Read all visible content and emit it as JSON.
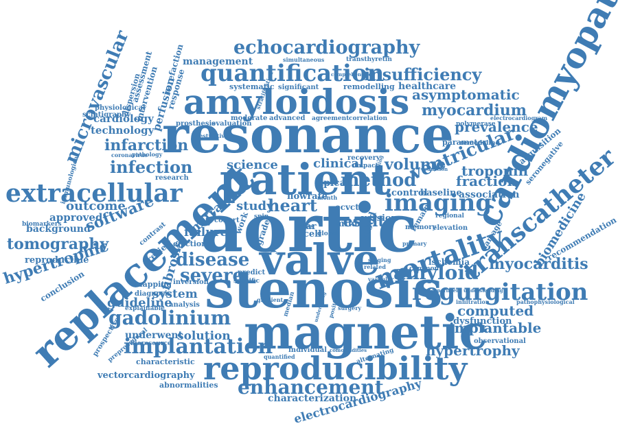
{
  "colors": {
    "text": "#3f7cb4",
    "background": "#ffffff"
  },
  "words": [
    {
      "text": "aortic",
      "weight": 1.0
    },
    {
      "text": "resonance",
      "weight": 0.86
    },
    {
      "text": "stenosis",
      "weight": 0.82
    },
    {
      "text": "magnetic",
      "weight": 0.74
    },
    {
      "text": "valve",
      "weight": 0.7
    },
    {
      "text": "patient",
      "weight": 0.7
    },
    {
      "text": "replacement",
      "weight": 0.66
    },
    {
      "text": "cardiomyopathy",
      "weight": 0.6
    },
    {
      "text": "amyloidosis",
      "weight": 0.56
    },
    {
      "text": "reproducibility",
      "weight": 0.52
    },
    {
      "text": "mortality",
      "weight": 0.46
    },
    {
      "text": "transcatheter",
      "weight": 0.44
    },
    {
      "text": "extracellular",
      "weight": 0.42
    },
    {
      "text": "quantification",
      "weight": 0.4
    },
    {
      "text": "regurgitation",
      "weight": 0.4
    },
    {
      "text": "imaging",
      "weight": 0.4
    },
    {
      "text": "gadolinium",
      "weight": 0.36
    },
    {
      "text": "implantation",
      "weight": 0.36
    },
    {
      "text": "echocardiography",
      "weight": 0.34
    },
    {
      "text": "enhancement",
      "weight": 0.34
    },
    {
      "text": "amyloid",
      "weight": 0.32
    },
    {
      "text": "insufficiency",
      "weight": 0.3
    },
    {
      "text": "disease",
      "weight": 0.3
    },
    {
      "text": "severe",
      "weight": 0.3
    },
    {
      "text": "ventricular",
      "weight": 0.3
    },
    {
      "text": "method",
      "weight": 0.3
    },
    {
      "text": "microvascular",
      "weight": 0.3
    },
    {
      "text": "infection",
      "weight": 0.28
    },
    {
      "text": "heart",
      "weight": 0.28
    },
    {
      "text": "myocarditis",
      "weight": 0.26
    },
    {
      "text": "tomography",
      "weight": 0.26
    },
    {
      "text": "hypertrophic",
      "weight": 0.26
    },
    {
      "text": "myocardium",
      "weight": 0.24
    },
    {
      "text": "software",
      "weight": 0.24
    },
    {
      "text": "result",
      "weight": 0.24
    },
    {
      "text": "volume",
      "weight": 0.22
    },
    {
      "text": "computed",
      "weight": 0.22
    },
    {
      "text": "implantable",
      "weight": 0.22
    },
    {
      "text": "hypertrophy",
      "weight": 0.22
    },
    {
      "text": "fraction",
      "weight": 0.22
    },
    {
      "text": "prevalence",
      "weight": 0.22
    },
    {
      "text": "troponin",
      "weight": 0.22
    },
    {
      "text": "asymptomatic",
      "weight": 0.22
    },
    {
      "text": "infarction",
      "weight": 0.22
    },
    {
      "text": "outcome",
      "weight": 0.22
    },
    {
      "text": "solution",
      "weight": 0.2
    },
    {
      "text": "guideline",
      "weight": 0.2
    },
    {
      "text": "failure",
      "weight": 0.2
    },
    {
      "text": "science",
      "weight": 0.2
    },
    {
      "text": "clinical",
      "weight": 0.2
    },
    {
      "text": "study",
      "weight": 0.2
    },
    {
      "text": "system",
      "weight": 0.2
    },
    {
      "text": "mitral",
      "weight": 0.2
    },
    {
      "text": "fibrosis",
      "weight": 0.2
    },
    {
      "text": "biomedicine",
      "weight": 0.2
    },
    {
      "text": "electrocardiography",
      "weight": 0.2
    },
    {
      "text": "management",
      "weight": 0.18
    },
    {
      "text": "cardiology",
      "weight": 0.18
    },
    {
      "text": "technology",
      "weight": 0.18
    },
    {
      "text": "healthcare",
      "weight": 0.18
    },
    {
      "text": "approved",
      "weight": 0.18
    },
    {
      "text": "background",
      "weight": 0.18
    },
    {
      "text": "association",
      "weight": 0.18
    },
    {
      "text": "underwent",
      "weight": 0.18
    },
    {
      "text": "dysfunction",
      "weight": 0.18
    },
    {
      "text": "characterization",
      "weight": 0.18
    },
    {
      "text": "version",
      "weight": 0.17
    },
    {
      "text": "perfusion",
      "weight": 0.17
    },
    {
      "text": "recommendation",
      "weight": 0.17
    },
    {
      "text": "vectorcardiography",
      "weight": 0.16
    },
    {
      "text": "reproducible",
      "weight": 0.16
    },
    {
      "text": "conclusion",
      "weight": 0.16
    },
    {
      "text": "baseline",
      "weight": 0.16
    },
    {
      "text": "control",
      "weight": 0.16
    },
    {
      "text": "acquisition",
      "weight": 0.16
    },
    {
      "text": "parameter",
      "weight": 0.16
    },
    {
      "text": "remodelling",
      "weight": 0.15
    },
    {
      "text": "systematic",
      "weight": 0.15
    },
    {
      "text": "significant",
      "weight": 0.15
    },
    {
      "text": "ischemia",
      "weight": 0.15
    },
    {
      "text": "characteristic",
      "weight": 0.15
    },
    {
      "text": "abnormalities",
      "weight": 0.15
    },
    {
      "text": "individual",
      "weight": 0.15
    },
    {
      "text": "seronegative",
      "weight": 0.15
    },
    {
      "text": "review",
      "weight": 0.15
    },
    {
      "text": "alternating",
      "weight": 0.14
    },
    {
      "text": "ejection",
      "weight": 0.14
    },
    {
      "text": "mapping",
      "weight": 0.14
    },
    {
      "text": "diagnosis",
      "weight": 0.14
    },
    {
      "text": "analysis",
      "weight": 0.14
    },
    {
      "text": "inversion",
      "weight": 0.14
    },
    {
      "text": "observational",
      "weight": 0.14
    },
    {
      "text": "moderate",
      "weight": 0.14
    },
    {
      "text": "advanced",
      "weight": 0.14
    },
    {
      "text": "agreement",
      "weight": 0.14
    },
    {
      "text": "correlation",
      "weight": 0.14
    },
    {
      "text": "polymerase",
      "weight": 0.14
    },
    {
      "text": "remodeling",
      "weight": 0.14
    },
    {
      "text": "evaluation",
      "weight": 0.13
    },
    {
      "text": "prosthesis",
      "weight": 0.13
    },
    {
      "text": "research",
      "weight": 0.13
    },
    {
      "text": "cohort",
      "weight": 0.13
    },
    {
      "text": "predict",
      "weight": 0.13
    },
    {
      "text": "specific",
      "weight": 0.13
    },
    {
      "text": "memory",
      "weight": 0.13
    },
    {
      "text": "elevation",
      "weight": 0.13
    },
    {
      "text": "regional",
      "weight": 0.13
    },
    {
      "text": "common",
      "weight": 0.13
    },
    {
      "text": "explainable",
      "weight": 0.13
    },
    {
      "text": "bioresource",
      "weight": 0.13
    },
    {
      "text": "quantified",
      "weight": 0.12
    },
    {
      "text": "gradient",
      "weight": 0.12
    },
    {
      "text": "assessment",
      "weight": 0.12
    },
    {
      "text": "intervention",
      "weight": 0.12
    },
    {
      "text": "rarefaction",
      "weight": 0.12
    },
    {
      "text": "response",
      "weight": 0.12
    },
    {
      "text": "dispersion",
      "weight": 0.12
    },
    {
      "text": "physiological",
      "weight": 0.12
    },
    {
      "text": "scintigraphy",
      "weight": 0.12
    },
    {
      "text": "immunological",
      "weight": 0.12
    },
    {
      "text": "biomarkers",
      "weight": 0.12
    },
    {
      "text": "contrast",
      "weight": 0.12
    },
    {
      "text": "prospective",
      "weight": 0.12
    },
    {
      "text": "preprocedural",
      "weight": 0.12
    },
    {
      "text": "pathophysiological",
      "weight": 0.12
    },
    {
      "text": "transthyretin",
      "weight": 0.12
    },
    {
      "text": "simultaneous",
      "weight": 0.11
    },
    {
      "text": "electrocardiogram",
      "weight": 0.11
    },
    {
      "text": "restrictive",
      "weight": 0.11
    },
    {
      "text": "pathology",
      "weight": 0.11
    },
    {
      "text": "coronavirus",
      "weight": 0.11
    },
    {
      "text": "stratification",
      "weight": 0.11
    },
    {
      "text": "flowrate",
      "weight": 0.12
    },
    {
      "text": "recovery",
      "weight": 0.11
    },
    {
      "text": "impact",
      "weight": 0.11
    },
    {
      "text": "apical",
      "weight": 0.12
    },
    {
      "text": "ecvct",
      "weight": 0.12
    },
    {
      "text": "month",
      "weight": 0.11
    },
    {
      "text": "global",
      "weight": 0.11
    },
    {
      "text": "cell",
      "weight": 0.12
    },
    {
      "text": "mild",
      "weight": 0.12
    },
    {
      "text": "blood",
      "weight": 0.13
    },
    {
      "text": "remain",
      "weight": 0.12
    },
    {
      "text": "damage",
      "weight": 0.12
    },
    {
      "text": "year",
      "weight": 0.12
    },
    {
      "text": "grade",
      "weight": 0.12
    },
    {
      "text": "sar",
      "weight": 0.12
    },
    {
      "text": "work",
      "weight": 0.12
    },
    {
      "text": "median",
      "weight": 0.11
    },
    {
      "text": "staging",
      "weight": 0.1
    },
    {
      "text": "primary",
      "weight": 0.1
    },
    {
      "text": "surgery",
      "weight": 0.1
    },
    {
      "text": "vascular",
      "weight": 0.1
    },
    {
      "text": "related",
      "weight": 0.1
    },
    {
      "text": "positive",
      "weight": 0.1
    },
    {
      "text": "infiltration",
      "weight": 0.1
    },
    {
      "text": "comprehensive",
      "weight": 0.1
    },
    {
      "text": "comorbidities",
      "weight": 0.1
    },
    {
      "text": "undergoing",
      "weight": 0.1
    },
    {
      "text": "experiment understanding",
      "weight": 0.1
    },
    {
      "text": "reduction",
      "weight": 0.1
    },
    {
      "text": "sampling",
      "weight": 0.1
    },
    {
      "text": "mass",
      "weight": 0.1
    },
    {
      "text": "spin",
      "weight": 0.1
    }
  ]
}
